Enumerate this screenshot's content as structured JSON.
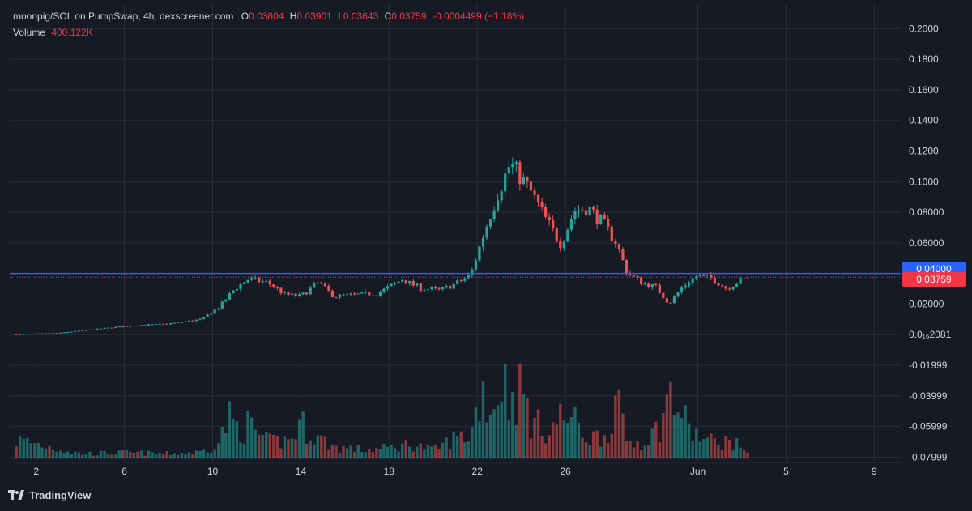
{
  "header": {
    "symbol": "moonpig/SOL on PumpSwap, 4h, dexscreener.com",
    "o_label": "O",
    "o_value": "0.03804",
    "h_label": "H",
    "h_value": "0.03901",
    "l_label": "L",
    "l_value": "0.03643",
    "c_label": "C",
    "c_value": "0.03759",
    "change": "-0.0004499 (−1.18%)",
    "volume_label": "Volume",
    "volume_value": "400.122K"
  },
  "brand": {
    "name": "TradingView"
  },
  "colors": {
    "up": "#26a69a",
    "down": "#ef5350",
    "background": "#161a25",
    "grid": "#2a2e39",
    "level": "#2962ff",
    "last_price": "#f23645"
  },
  "chart_data": {
    "type": "candlestick",
    "interval": "4h",
    "x_tick_labels": [
      "2",
      "6",
      "10",
      "14",
      "18",
      "22",
      "26",
      "Jun",
      "5",
      "9"
    ],
    "x_tick_days": [
      2,
      6,
      10,
      14,
      18,
      22,
      26,
      32,
      36,
      40
    ],
    "x_range_days": [
      0.8,
      41.2
    ],
    "y_tick_labels": [
      "0.2000",
      "0.1800",
      "0.1600",
      "0.1400",
      "0.1200",
      "0.1000",
      "0.08000",
      "0.06000",
      "0.02000",
      "0.0₁₆2081",
      "-0.01999",
      "-0.03999",
      "-0.05999",
      "-0.07999"
    ],
    "y_tick_values": [
      0.2,
      0.18,
      0.16,
      0.14,
      0.12,
      0.1,
      0.08,
      0.06,
      0.02,
      0.0,
      -0.01999,
      -0.03999,
      -0.05999,
      -0.07999
    ],
    "y_range": [
      -0.0835,
      0.2055
    ],
    "horizontal_level": {
      "value": 0.04,
      "label": "0.04000"
    },
    "last_price": {
      "value": 0.03759,
      "label": "0.03759"
    },
    "anchors": [
      [
        1.1,
        0.0002
      ],
      [
        3,
        0.0011
      ],
      [
        5,
        0.0041
      ],
      [
        6.5,
        0.0061
      ],
      [
        8,
        0.0071
      ],
      [
        9.5,
        0.0101
      ],
      [
        10.3,
        0.0181
      ],
      [
        11,
        0.0301
      ],
      [
        11.6,
        0.0361
      ],
      [
        12.5,
        0.0341
      ],
      [
        13.3,
        0.0261
      ],
      [
        14,
        0.0251
      ],
      [
        14.8,
        0.0341
      ],
      [
        15.5,
        0.0251
      ],
      [
        16.5,
        0.0261
      ],
      [
        17.5,
        0.0271
      ],
      [
        18.6,
        0.0361
      ],
      [
        19,
        0.0331
      ],
      [
        19.5,
        0.0301
      ],
      [
        20.3,
        0.0291
      ],
      [
        21,
        0.0331
      ],
      [
        21.7,
        0.0391
      ],
      [
        22.3,
        0.0661
      ],
      [
        22.9,
        0.0911
      ],
      [
        23.5,
        0.1121
      ],
      [
        24.4,
        0.0941
      ],
      [
        25.2,
        0.0731
      ],
      [
        25.8,
        0.0591
      ],
      [
        26.4,
        0.0811
      ],
      [
        27,
        0.0831
      ],
      [
        27.7,
        0.0731
      ],
      [
        28.3,
        0.0601
      ],
      [
        28.8,
        0.0401
      ],
      [
        29.6,
        0.0331
      ],
      [
        30.1,
        0.0311
      ],
      [
        30.7,
        0.0201
      ],
      [
        31.3,
        0.0311
      ],
      [
        31.9,
        0.0381
      ],
      [
        32.6,
        0.0371
      ],
      [
        33.3,
        0.0301
      ],
      [
        33.9,
        0.0351
      ],
      [
        34.4,
        0.0373
      ]
    ],
    "volume": [
      [
        1.5,
        0.21
      ],
      [
        4,
        0.06
      ],
      [
        6,
        0.07
      ],
      [
        8,
        0.06
      ],
      [
        9.5,
        0.08
      ],
      [
        10.3,
        0.2
      ],
      [
        10.7,
        0.5
      ],
      [
        11.3,
        0.34
      ],
      [
        11.6,
        0.4
      ],
      [
        12.5,
        0.2
      ],
      [
        13.5,
        0.22
      ],
      [
        14,
        0.42
      ],
      [
        14.5,
        0.3
      ],
      [
        15.5,
        0.14
      ],
      [
        17,
        0.1
      ],
      [
        18,
        0.13
      ],
      [
        19,
        0.18
      ],
      [
        20,
        0.1
      ],
      [
        21,
        0.25
      ],
      [
        21.7,
        0.28
      ],
      [
        22.2,
        0.86
      ],
      [
        22.7,
        0.55
      ],
      [
        23.1,
        1.0
      ],
      [
        23.5,
        0.72
      ],
      [
        24,
        0.83
      ],
      [
        24.5,
        0.42
      ],
      [
        25.3,
        0.35
      ],
      [
        25.8,
        0.5
      ],
      [
        26.2,
        0.5
      ],
      [
        27,
        0.25
      ],
      [
        27.8,
        0.28
      ],
      [
        28.3,
        0.67
      ],
      [
        28.8,
        0.2
      ],
      [
        29.5,
        0.2
      ],
      [
        30.2,
        0.35
      ],
      [
        30.7,
        0.76
      ],
      [
        31.2,
        0.58
      ],
      [
        31.6,
        0.35
      ],
      [
        32.3,
        0.22
      ],
      [
        33,
        0.2
      ],
      [
        33.5,
        0.2
      ],
      [
        34.3,
        0.1
      ]
    ],
    "volume_scale_note": "relative heights (max = 1)",
    "grid": true,
    "legend": "top-left"
  }
}
